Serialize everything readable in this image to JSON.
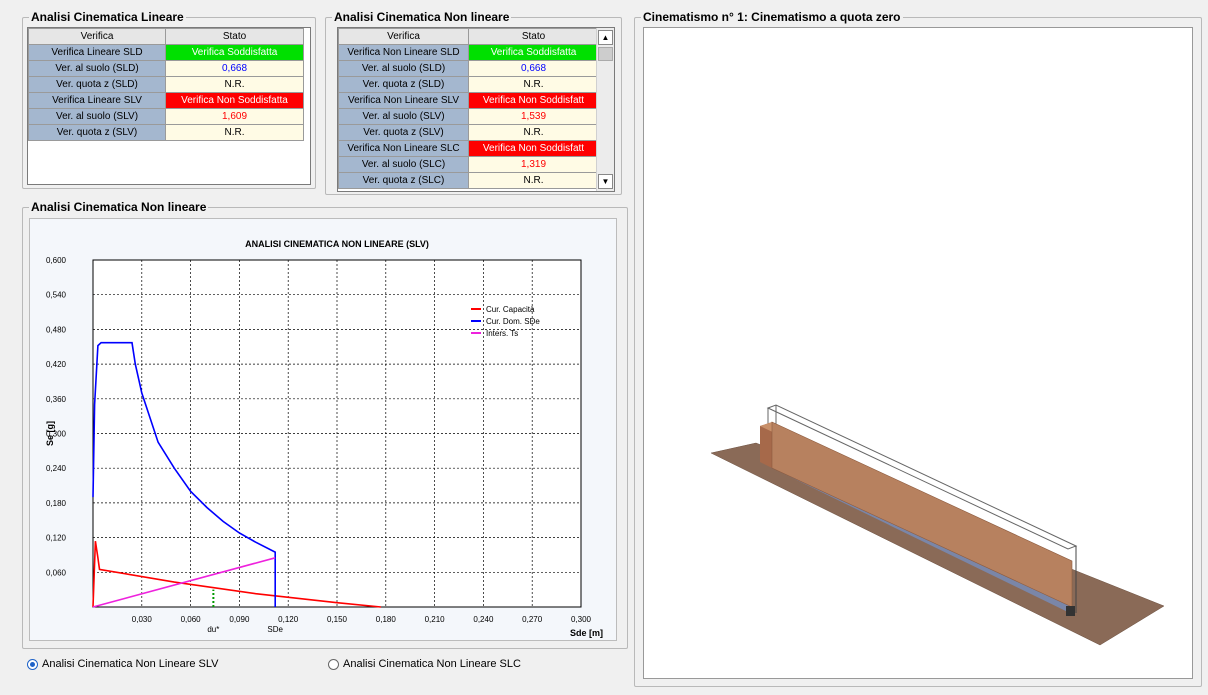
{
  "linear": {
    "title": "Analisi Cinematica Lineare",
    "headers": [
      "Verifica",
      "Stato"
    ],
    "rows": [
      {
        "label": "Verifica Lineare SLD",
        "value": "Verifica Soddisfatta",
        "status": "ok"
      },
      {
        "label": "Ver. al suolo (SLD)",
        "value": "0,668",
        "status": "blue"
      },
      {
        "label": "Ver. quota z (SLD)",
        "value": "N.R.",
        "status": "plain"
      },
      {
        "label": "Verifica Lineare SLV",
        "value": "Verifica Non Soddisfatta",
        "status": "ko"
      },
      {
        "label": "Ver. al suolo (SLV)",
        "value": "1,609",
        "status": "red"
      },
      {
        "label": "Ver. quota z (SLV)",
        "value": "N.R.",
        "status": "plain"
      }
    ]
  },
  "nonlinear": {
    "title": "Analisi Cinematica Non lineare",
    "headers": [
      "Verifica",
      "Stato"
    ],
    "rows": [
      {
        "label": "Verifica Non Lineare SLD",
        "value": "Verifica Soddisfatta",
        "status": "ok"
      },
      {
        "label": "Ver. al suolo (SLD)",
        "value": "0,668",
        "status": "blue"
      },
      {
        "label": "Ver. quota z (SLD)",
        "value": "N.R.",
        "status": "plain"
      },
      {
        "label": "Verifica Non Lineare SLV",
        "value": "Verifica Non Soddisfatt",
        "status": "ko"
      },
      {
        "label": "Ver. al suolo (SLV)",
        "value": "1,539",
        "status": "red"
      },
      {
        "label": "Ver. quota z (SLV)",
        "value": "N.R.",
        "status": "plain"
      },
      {
        "label": "Verifica Non Lineare SLC",
        "value": "Verifica Non Soddisfatt",
        "status": "ko"
      },
      {
        "label": "Ver. al suolo (SLC)",
        "value": "1,319",
        "status": "red"
      },
      {
        "label": "Ver. quota z (SLC)",
        "value": "N.R.",
        "status": "plain"
      }
    ],
    "scroll_up": "▲",
    "scroll_down": "▼"
  },
  "chart_group_title": "Analisi Cinematica Non lineare",
  "view_title": "Cinematismo n° 1: Cinematismo a quota zero",
  "radios": [
    {
      "label": "Analisi Cinematica Non Lineare SLV",
      "checked": true
    },
    {
      "label": "Analisi Cinematica Non Lineare SLC",
      "checked": false
    }
  ],
  "chart_data": {
    "type": "line",
    "title": "ANALISI CINEMATICA NON LINEARE (SLV)",
    "xlabel": "Sde [m]",
    "ylabel": "Se [g]",
    "xlim": [
      0,
      0.3
    ],
    "ylim": [
      0,
      0.6
    ],
    "x_ticks": [
      "0,030",
      "0,060",
      "0,090",
      "0,120",
      "0,150",
      "0,180",
      "0,210",
      "0,240",
      "0,270",
      "0,300"
    ],
    "y_ticks": [
      "0,060",
      "0,120",
      "0,180",
      "0,240",
      "0,300",
      "0,360",
      "0,420",
      "0,480",
      "0,540",
      "0,600"
    ],
    "grid": true,
    "legend_position": "top-right",
    "series": [
      {
        "name": "Cur. Capacità",
        "color": "#ff0000",
        "points": [
          [
            0,
            0
          ],
          [
            0.0015,
            0.114
          ],
          [
            0.003,
            0.085
          ],
          [
            0.004,
            0.065
          ],
          [
            0.05,
            0.043
          ],
          [
            0.1,
            0.023
          ],
          [
            0.15,
            0.0075
          ],
          [
            0.177,
            0
          ]
        ]
      },
      {
        "name": "Cur. Dom. SDe",
        "color": "#0000ff",
        "points": [
          [
            0,
            0.19
          ],
          [
            0.001,
            0.35
          ],
          [
            0.003,
            0.452
          ],
          [
            0.005,
            0.457
          ],
          [
            0.024,
            0.457
          ],
          [
            0.026,
            0.42
          ],
          [
            0.03,
            0.37
          ],
          [
            0.04,
            0.285
          ],
          [
            0.05,
            0.24
          ],
          [
            0.06,
            0.2
          ],
          [
            0.07,
            0.172
          ],
          [
            0.08,
            0.148
          ],
          [
            0.09,
            0.128
          ],
          [
            0.1,
            0.112
          ],
          [
            0.112,
            0.095
          ],
          [
            0.112,
            0
          ]
        ]
      },
      {
        "name": "Inters. Ts",
        "color": "#ee22dd",
        "points": [
          [
            0,
            0
          ],
          [
            0.112,
            0.085
          ]
        ]
      }
    ],
    "markers": [
      {
        "label": "du*",
        "x": 0.074,
        "ymax": 0.03,
        "color": "#009900"
      },
      {
        "label": "SDe",
        "x": 0.112
      }
    ]
  }
}
